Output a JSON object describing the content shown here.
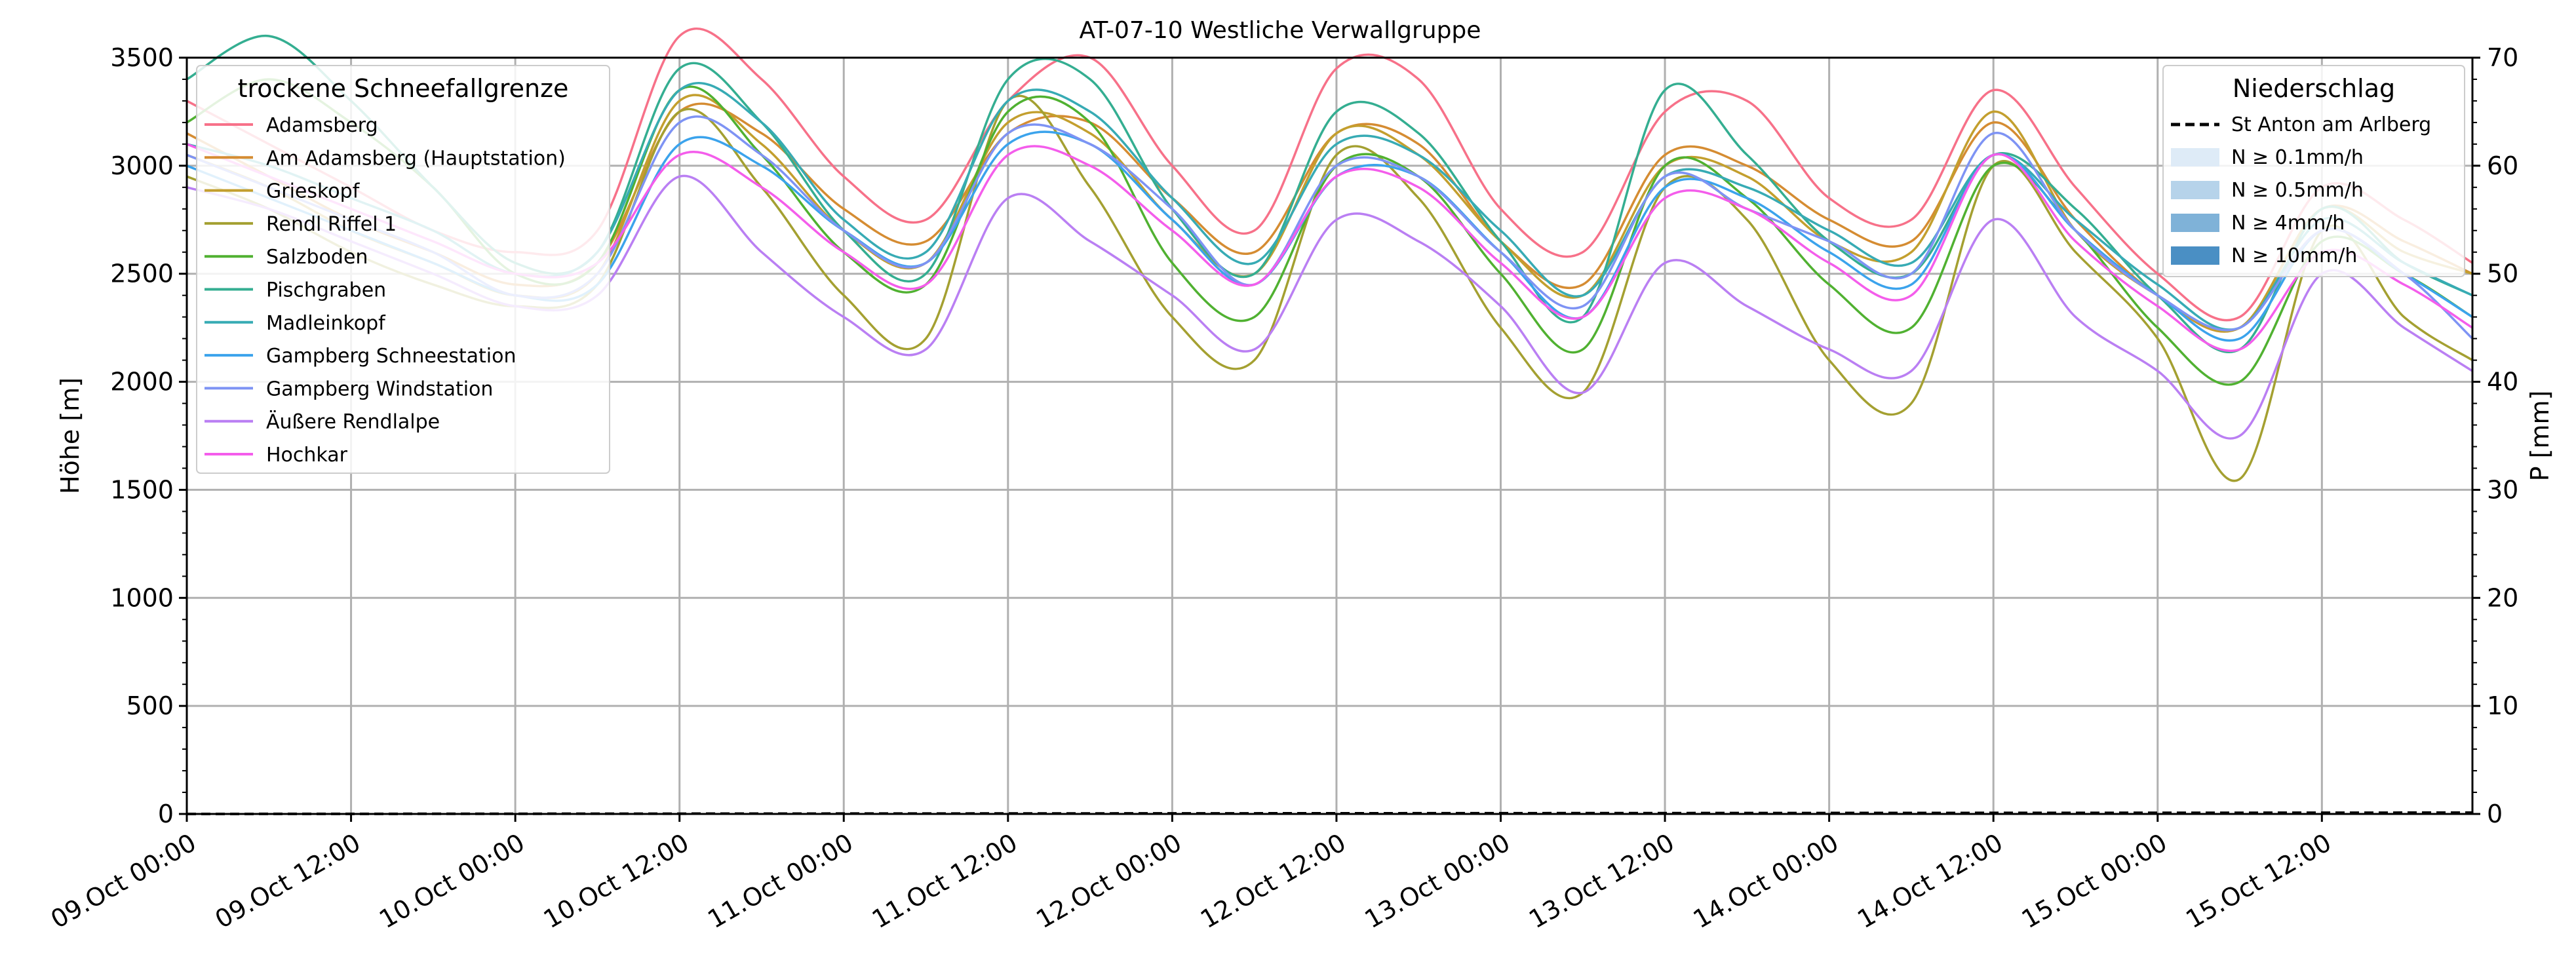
{
  "chart_data": {
    "type": "line",
    "title": "AT-07-10 Westliche Verwallgruppe",
    "ylabel": "Höhe [m]",
    "ylabel_right": "P [mm]",
    "ylim": [
      0,
      3500
    ],
    "ylim_right": [
      0,
      70
    ],
    "yticks": [
      0,
      500,
      1000,
      1500,
      2000,
      2500,
      3000,
      3500
    ],
    "yticks_right": [
      0,
      10,
      20,
      30,
      40,
      50,
      60,
      70
    ],
    "x_start": "2024-10-09T00:00",
    "x_end": "2024-10-15T23:00",
    "xticks": [
      {
        "t": "2024-10-09T00:00",
        "label": "09.Oct 00:00"
      },
      {
        "t": "2024-10-09T12:00",
        "label": "09.Oct 12:00"
      },
      {
        "t": "2024-10-10T00:00",
        "label": "10.Oct 00:00"
      },
      {
        "t": "2024-10-10T12:00",
        "label": "10.Oct 12:00"
      },
      {
        "t": "2024-10-11T00:00",
        "label": "11.Oct 00:00"
      },
      {
        "t": "2024-10-11T12:00",
        "label": "11.Oct 12:00"
      },
      {
        "t": "2024-10-12T00:00",
        "label": "12.Oct 00:00"
      },
      {
        "t": "2024-10-12T12:00",
        "label": "12.Oct 12:00"
      },
      {
        "t": "2024-10-13T00:00",
        "label": "13.Oct 00:00"
      },
      {
        "t": "2024-10-13T12:00",
        "label": "13.Oct 12:00"
      },
      {
        "t": "2024-10-14T00:00",
        "label": "14.Oct 00:00"
      },
      {
        "t": "2024-10-14T12:00",
        "label": "14.Oct 12:00"
      },
      {
        "t": "2024-10-15T00:00",
        "label": "15.Oct 00:00"
      },
      {
        "t": "2024-10-15T12:00",
        "label": "15.Oct 12:00"
      }
    ],
    "grid": true,
    "legend_left": {
      "title": "trockene Schneefallgrenze",
      "placement": "top-left"
    },
    "legend_right": {
      "title": "Niederschlag",
      "placement": "top-right",
      "line_label": "St Anton am Arlberg",
      "patches": [
        {
          "label": "N ≥ 0.1mm/h",
          "color": "#deebf7"
        },
        {
          "label": "N ≥ 0.5mm/h",
          "color": "#b6d3ea"
        },
        {
          "label": "N ≥ 4mm/h",
          "color": "#7fb2d8"
        },
        {
          "label": "N ≥ 10mm/h",
          "color": "#4a8fc4"
        }
      ]
    },
    "precipitation": {
      "name": "St Anton am Arlberg",
      "x": [
        "2024-10-09T00:00",
        "2024-10-15T23:00"
      ],
      "values": [
        0,
        0
      ]
    },
    "series_x": [
      "2024-10-09T00:00",
      "2024-10-09T06:00",
      "2024-10-09T12:00",
      "2024-10-09T18:00",
      "2024-10-10T00:00",
      "2024-10-10T06:00",
      "2024-10-10T12:00",
      "2024-10-10T18:00",
      "2024-10-11T00:00",
      "2024-10-11T06:00",
      "2024-10-11T12:00",
      "2024-10-11T18:00",
      "2024-10-12T00:00",
      "2024-10-12T06:00",
      "2024-10-12T12:00",
      "2024-10-12T18:00",
      "2024-10-13T00:00",
      "2024-10-13T06:00",
      "2024-10-13T12:00",
      "2024-10-13T18:00",
      "2024-10-14T00:00",
      "2024-10-14T06:00",
      "2024-10-14T12:00",
      "2024-10-14T18:00",
      "2024-10-15T00:00",
      "2024-10-15T06:00",
      "2024-10-15T12:00",
      "2024-10-15T18:00",
      "2024-10-15T23:00"
    ],
    "series": [
      {
        "name": "Adamsberg",
        "color": "#f77189",
        "values": [
          3300,
          3100,
          2900,
          2700,
          2600,
          2700,
          3600,
          3400,
          2950,
          2750,
          3300,
          3500,
          3000,
          2700,
          3450,
          3400,
          2800,
          2600,
          3250,
          3300,
          2850,
          2750,
          3350,
          2900,
          2500,
          2300,
          2900,
          2750,
          2550
        ]
      },
      {
        "name": "Am Adamsberg (Hauptstation)",
        "color": "#d58c32",
        "values": [
          3150,
          2950,
          2750,
          2600,
          2450,
          2550,
          3250,
          3150,
          2800,
          2650,
          3150,
          3200,
          2850,
          2600,
          3150,
          3100,
          2650,
          2450,
          3050,
          3000,
          2750,
          2650,
          3200,
          2750,
          2400,
          2250,
          2800,
          2650,
          2500
        ]
      },
      {
        "name": "Grieskopf",
        "color": "#c39f2e",
        "values": [
          3050,
          2900,
          2700,
          2550,
          2400,
          2500,
          3300,
          3100,
          2700,
          2550,
          3200,
          3150,
          2750,
          2500,
          3150,
          3050,
          2650,
          2400,
          3000,
          2950,
          2650,
          2600,
          3250,
          2700,
          2400,
          2250,
          2800,
          2600,
          2500
        ]
      },
      {
        "name": "Rendl Riffel 1",
        "color": "#a4a031",
        "values": [
          2950,
          2800,
          2600,
          2450,
          2350,
          2450,
          3250,
          2900,
          2400,
          2200,
          3300,
          2900,
          2300,
          2100,
          3050,
          2850,
          2250,
          1950,
          2900,
          2750,
          2100,
          1900,
          3000,
          2600,
          2200,
          1550,
          2700,
          2300,
          2100
        ]
      },
      {
        "name": "Salzboden",
        "color": "#50b131",
        "values": [
          3200,
          3400,
          3200,
          2900,
          2500,
          2550,
          3350,
          3050,
          2600,
          2450,
          3250,
          3200,
          2550,
          2300,
          3000,
          2950,
          2500,
          2150,
          3000,
          2850,
          2450,
          2250,
          3000,
          2700,
          2250,
          2000,
          2650,
          2500,
          2300
        ]
      },
      {
        "name": "Pischgraben",
        "color": "#34ae91",
        "values": [
          3400,
          3600,
          3300,
          2900,
          2550,
          2600,
          3450,
          3200,
          2700,
          2500,
          3400,
          3400,
          2800,
          2500,
          3250,
          3150,
          2650,
          2300,
          3350,
          3050,
          2650,
          2500,
          3050,
          2800,
          2400,
          2150,
          2800,
          2550,
          2400
        ]
      },
      {
        "name": "Madleinkopf",
        "color": "#37abb4",
        "values": [
          3100,
          3000,
          2850,
          2700,
          2500,
          2600,
          3350,
          3200,
          2750,
          2600,
          3300,
          3250,
          2850,
          2550,
          3100,
          3050,
          2700,
          2400,
          2950,
          2900,
          2700,
          2550,
          3050,
          2750,
          2450,
          2250,
          2750,
          2550,
          2400
        ]
      },
      {
        "name": "Gampberg Schneestation",
        "color": "#3ba3ec",
        "values": [
          3000,
          2850,
          2700,
          2550,
          2400,
          2450,
          3100,
          3000,
          2700,
          2550,
          3100,
          3100,
          2750,
          2450,
          2950,
          2950,
          2600,
          2300,
          2900,
          2850,
          2600,
          2450,
          3050,
          2700,
          2400,
          2200,
          2700,
          2500,
          2300
        ]
      },
      {
        "name": "Gampberg Windstation",
        "color": "#7e93f4",
        "values": [
          3050,
          2900,
          2750,
          2600,
          2400,
          2500,
          3200,
          3050,
          2700,
          2550,
          3150,
          3100,
          2800,
          2450,
          3000,
          2950,
          2600,
          2350,
          2950,
          2800,
          2650,
          2500,
          3150,
          2700,
          2400,
          2250,
          2700,
          2500,
          2200
        ]
      },
      {
        "name": "Äußere Rendlalpe",
        "color": "#ba7ff3",
        "values": [
          2900,
          2800,
          2650,
          2500,
          2350,
          2400,
          2950,
          2600,
          2300,
          2150,
          2850,
          2650,
          2400,
          2150,
          2750,
          2650,
          2350,
          1950,
          2550,
          2350,
          2150,
          2050,
          2750,
          2300,
          2050,
          1750,
          2500,
          2250,
          2050
        ]
      },
      {
        "name": "Hochkar",
        "color": "#f45deb",
        "values": [
          3100,
          2950,
          2800,
          2650,
          2500,
          2550,
          3050,
          2900,
          2600,
          2450,
          3050,
          3000,
          2700,
          2450,
          2950,
          2900,
          2550,
          2300,
          2850,
          2800,
          2550,
          2400,
          3050,
          2650,
          2350,
          2150,
          2600,
          2450,
          2250
        ]
      }
    ]
  }
}
